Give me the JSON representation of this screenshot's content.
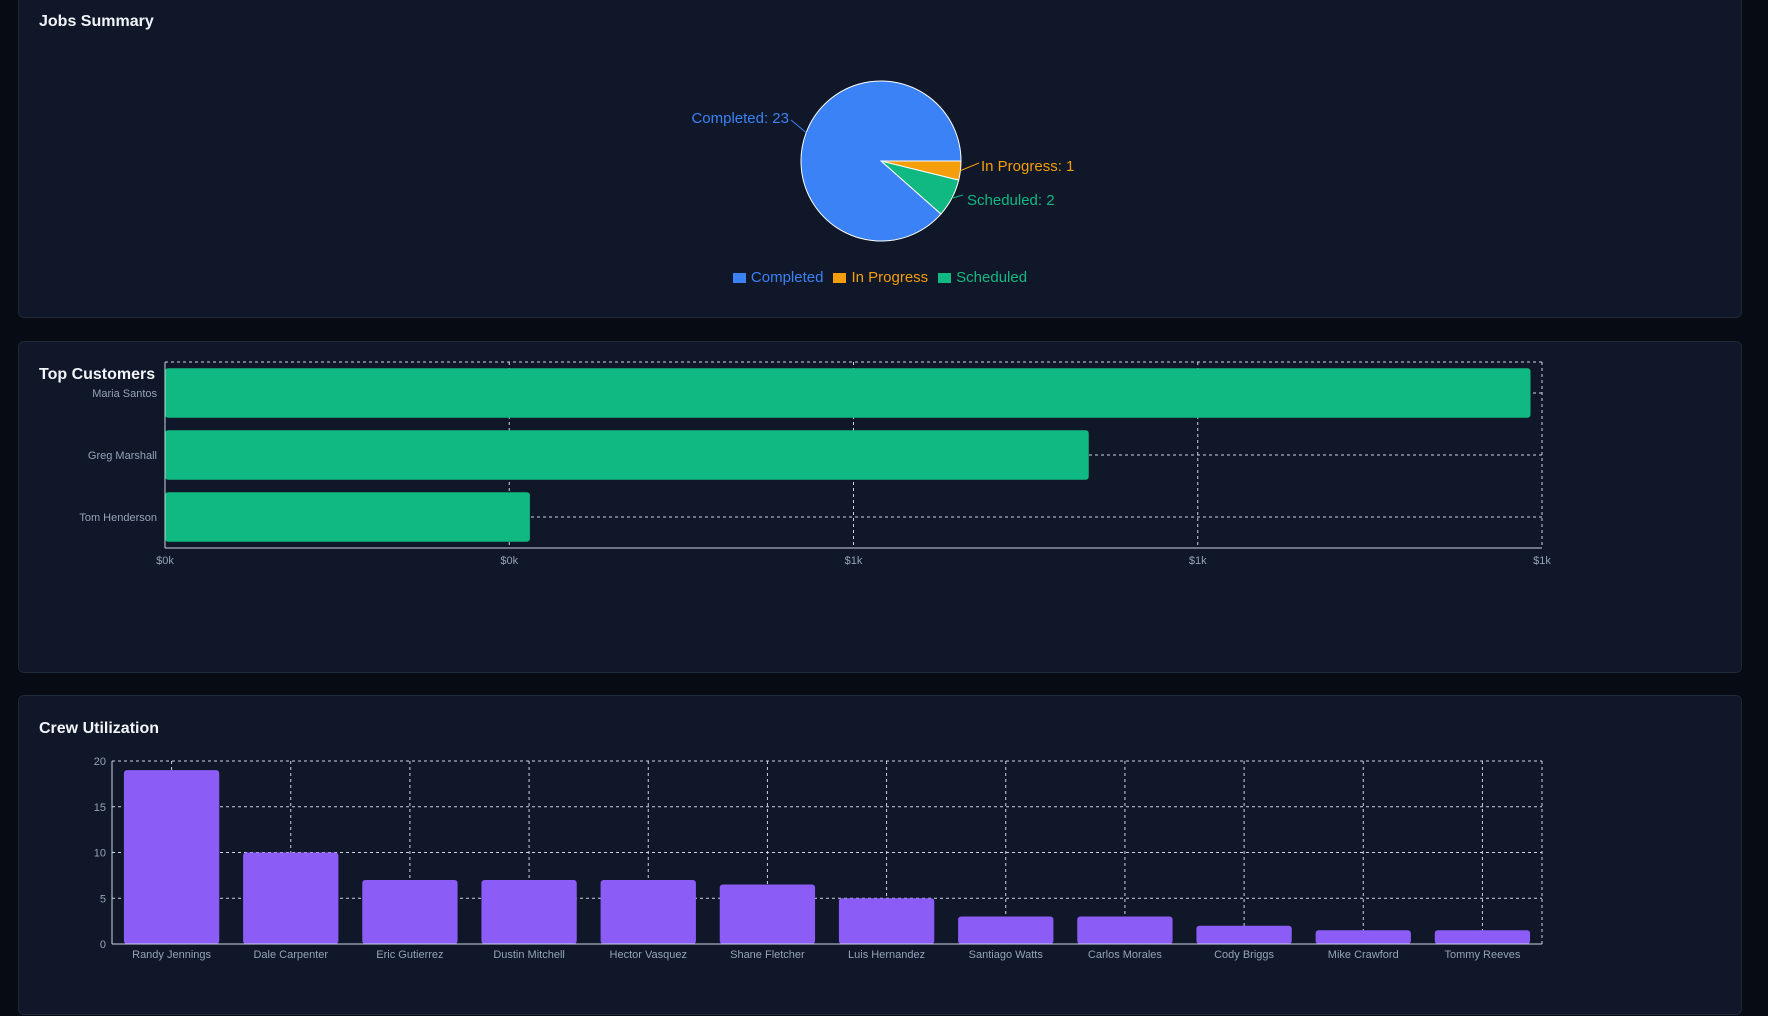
{
  "colors": {
    "completed": "#3b82f6",
    "in_progress": "#f59e0b",
    "scheduled": "#10b981",
    "customers_bar": "#10b981",
    "crew_bar": "#8b5cf6",
    "grid": "#cbd5e1",
    "tick_text": "#94a3b8"
  },
  "jobs_summary": {
    "title": "Jobs Summary",
    "chart_data": {
      "type": "pie",
      "slices": [
        {
          "name": "Completed",
          "value": 23,
          "label": "Completed: 23"
        },
        {
          "name": "In Progress",
          "value": 1,
          "label": "In Progress: 1"
        },
        {
          "name": "Scheduled",
          "value": 2,
          "label": "Scheduled: 2"
        }
      ],
      "legend": [
        "Completed",
        "In Progress",
        "Scheduled"
      ],
      "legend_placement": "bottom"
    }
  },
  "top_customers": {
    "title": "Top Customers",
    "chart_data": {
      "type": "bar",
      "orientation": "horizontal",
      "categories": [
        "Maria Santos",
        "Greg Marshall",
        "Tom Henderson"
      ],
      "values": [
        1190,
        805,
        318
      ],
      "x_ticks": [
        "$0k",
        "$0k",
        "$1k",
        "$1k",
        "$1k"
      ],
      "xlim": [
        0,
        1200
      ],
      "grid": true
    }
  },
  "crew_utilization": {
    "title": "Crew Utilization",
    "chart_data": {
      "type": "bar",
      "categories": [
        "Randy Jennings",
        "Dale Carpenter",
        "Eric Gutierrez",
        "Dustin Mitchell",
        "Hector Vasquez",
        "Shane Fletcher",
        "Luis Hernandez",
        "Santiago Watts",
        "Carlos Morales",
        "Cody Briggs",
        "Mike Crawford",
        "Tommy Reeves"
      ],
      "values": [
        19,
        10,
        7,
        7,
        7,
        6.5,
        5,
        3,
        3,
        2,
        1.5,
        1.5
      ],
      "y_ticks": [
        "0",
        "5",
        "10",
        "15",
        "20"
      ],
      "ylim": [
        0,
        20
      ],
      "grid": true
    }
  }
}
